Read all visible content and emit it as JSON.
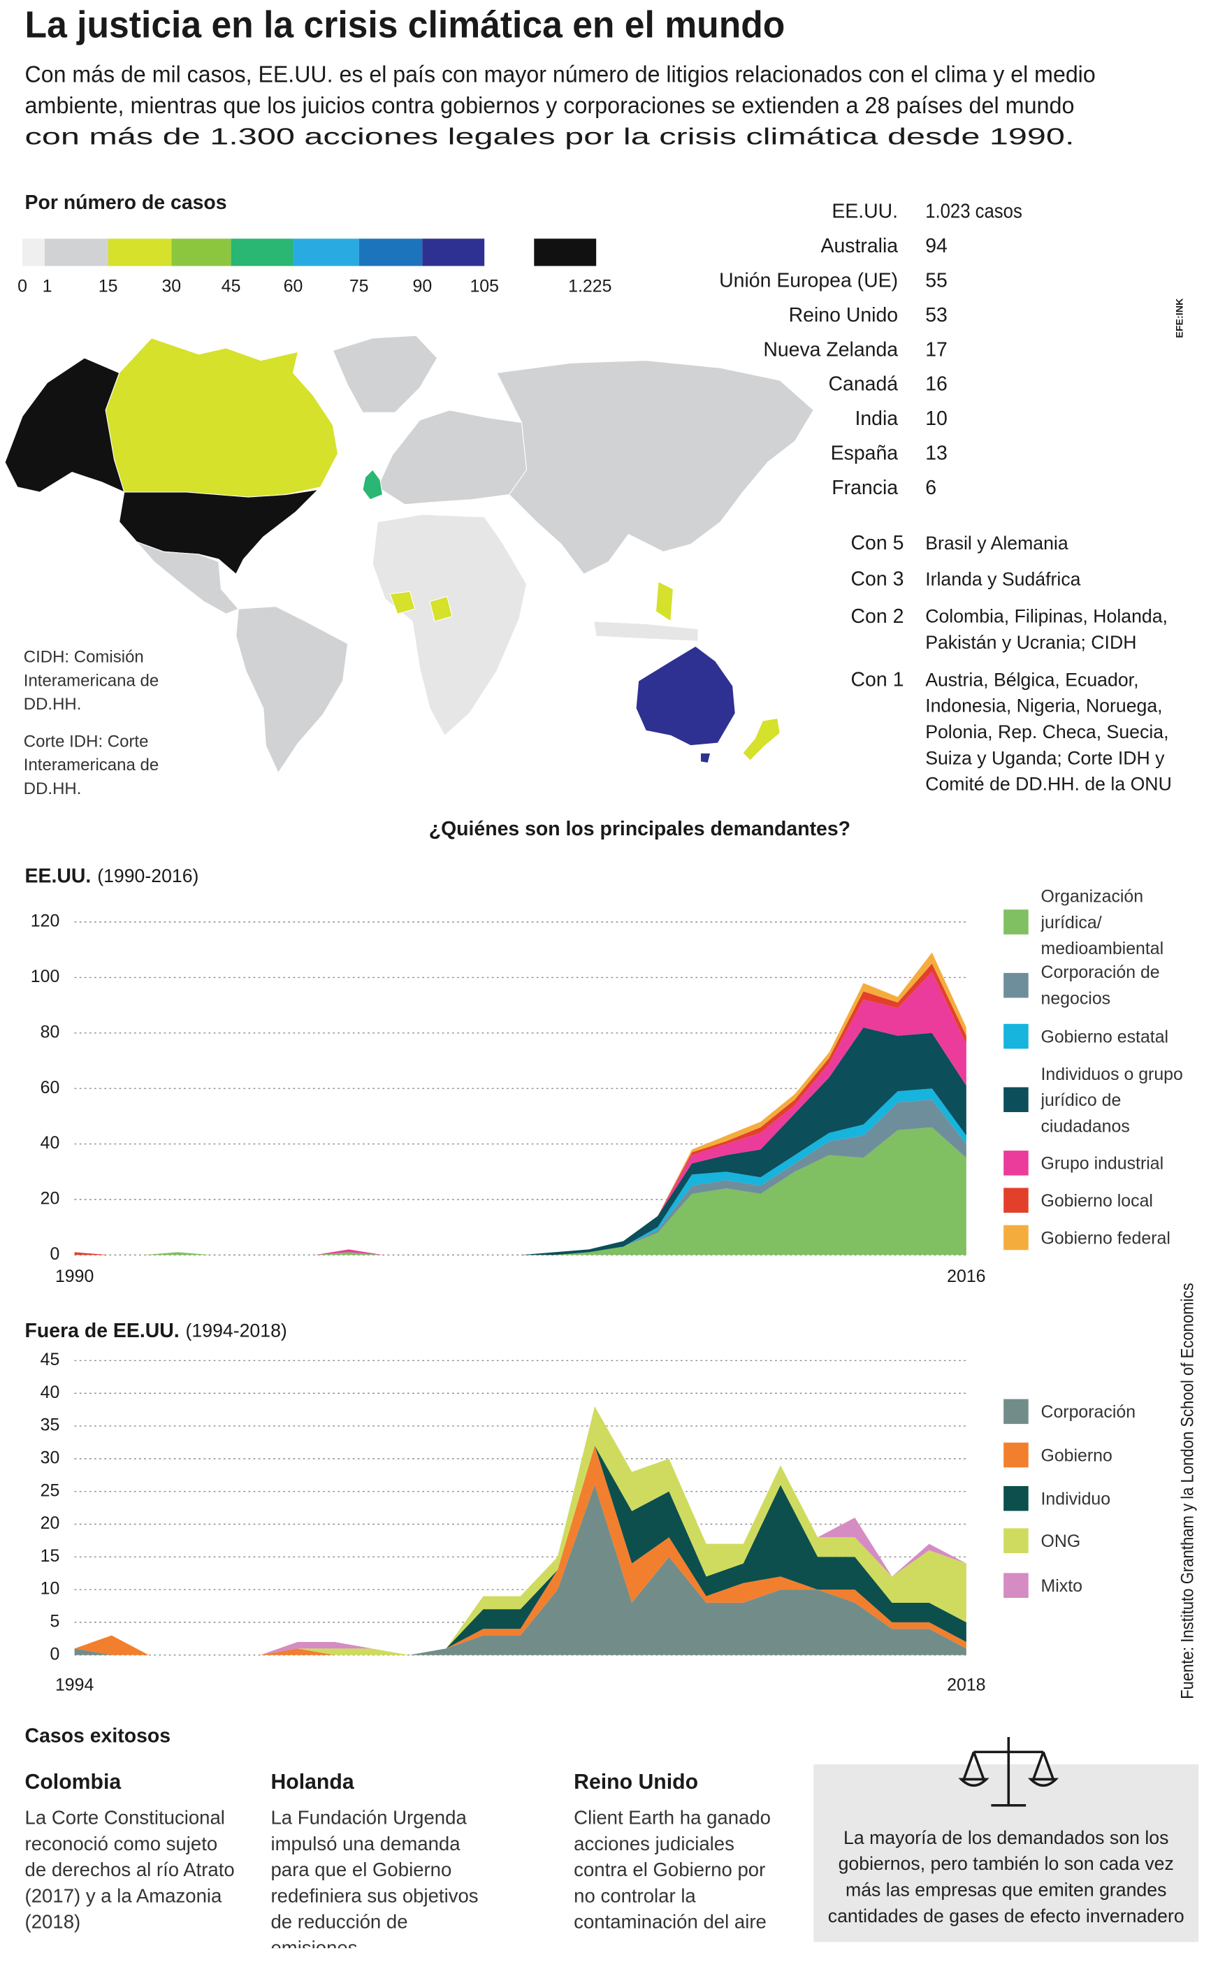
{
  "header": {
    "title": "La justicia en la crisis climática en el mundo",
    "intro": [
      "Con más de mil casos, EE.UU. es el país con mayor número de litigios relacionados con el clima y el medio",
      "ambiente, mientras que los juicios contra gobiernos y corporaciones se extienden a 28 países del mundo",
      "con más de 1.300 acciones legales por la crisis climática desde 1990."
    ]
  },
  "brand": "EFE:INK",
  "color_scale": {
    "title": "Por número de casos",
    "colors": [
      "#efefef",
      "#d1d2d4",
      "#d5e12b",
      "#8cc63f",
      "#2ab673",
      "#29abe2",
      "#1c75bc",
      "#2e3192",
      "#111111"
    ],
    "ticks": [
      0,
      1,
      15,
      30,
      45,
      60,
      75,
      90,
      105,
      {
        "value": 1225,
        "label": "1.225"
      }
    ]
  },
  "ranking": [
    {
      "country": "EE.UU.",
      "value": "1.023 casos"
    },
    {
      "country": "Australia",
      "value": "94"
    },
    {
      "country": "Unión Europea (UE)",
      "value": "55"
    },
    {
      "country": "Reino Unido",
      "value": "53"
    },
    {
      "country": "Nueva Zelanda",
      "value": "17"
    },
    {
      "country": "Canadá",
      "value": "16"
    },
    {
      "country": "India",
      "value": "10"
    },
    {
      "country": "España",
      "value": "13"
    },
    {
      "country": "Francia",
      "value": "6"
    }
  ],
  "groups": [
    {
      "label": "Con 5",
      "text": "Brasil y Alemania"
    },
    {
      "label": "Con 3",
      "text": "Irlanda y Sudáfrica"
    },
    {
      "label": "Con 2",
      "text": "Colombia, Filipinas, Holanda, Pakistán y Ucrania; CIDH"
    },
    {
      "label": "Con 1",
      "text": "Austria, Bélgica, Ecuador, Indonesia, Nigeria, Noruega, Polonia, Rep. Checa, Suecia, Suiza y Uganda; Corte IDH y Comité de DD.HH. de la ONU"
    }
  ],
  "map_notes": [
    "CIDH: Comisión Interamericana de DD.HH.",
    "Corte IDH: Corte Interamericana de DD.HH."
  ],
  "section_title": "¿Quiénes son los principales demandantes?",
  "chart_data": [
    {
      "type": "stacked_area",
      "title": "EE.UU.",
      "subtitle": "(1990-2016)",
      "x": [
        1990,
        1991,
        1992,
        1993,
        1994,
        1995,
        1996,
        1997,
        1998,
        1999,
        2000,
        2001,
        2002,
        2003,
        2004,
        2005,
        2006,
        2007,
        2008,
        2009,
        2010,
        2011,
        2012,
        2013,
        2014,
        2015,
        2016
      ],
      "xlim": [
        1990,
        2016
      ],
      "xticks": [
        1990,
        2016
      ],
      "ylim": [
        0,
        120
      ],
      "yticks": [
        0,
        20,
        40,
        60,
        80,
        100,
        120
      ],
      "grid": true,
      "series": [
        {
          "name": "Organización jurídica/ medioambiental",
          "color": "#80bf62",
          "values": [
            0,
            0,
            0,
            1,
            0,
            0,
            0,
            0,
            1,
            0,
            0,
            0,
            0,
            0,
            0,
            1,
            3,
            8,
            22,
            24,
            22,
            30,
            36,
            35,
            45,
            46,
            35
          ]
        },
        {
          "name": "Corporación de negocios",
          "color": "#6f8e9b",
          "values": [
            0,
            0,
            0,
            0,
            0,
            0,
            0,
            0,
            0,
            0,
            0,
            0,
            0,
            0,
            0,
            0,
            0,
            1,
            3,
            3,
            3,
            3,
            5,
            8,
            10,
            10,
            5
          ]
        },
        {
          "name": "Gobierno estatal",
          "color": "#17b4dd",
          "values": [
            0,
            0,
            0,
            0,
            0,
            0,
            0,
            0,
            0,
            0,
            0,
            0,
            0,
            0,
            0,
            0,
            0,
            1,
            4,
            3,
            3,
            3,
            3,
            4,
            4,
            4,
            3
          ]
        },
        {
          "name": "Individuos o grupo jurídico de ciudadanos",
          "color": "#0c4e5a",
          "values": [
            0,
            0,
            0,
            0,
            0,
            0,
            0,
            0,
            0,
            0,
            0,
            0,
            0,
            0,
            1,
            1,
            2,
            4,
            4,
            6,
            10,
            15,
            20,
            35,
            20,
            20,
            18
          ]
        },
        {
          "name": "Grupo industrial",
          "color": "#eb3c9b",
          "values": [
            0,
            0,
            0,
            0,
            0,
            0,
            0,
            0,
            1,
            0,
            0,
            0,
            0,
            0,
            0,
            0,
            0,
            0,
            3,
            4,
            6,
            3,
            5,
            10,
            10,
            22,
            15
          ]
        },
        {
          "name": "Gobierno local",
          "color": "#e3402c",
          "values": [
            1,
            0,
            0,
            0,
            0,
            0,
            0,
            0,
            0,
            0,
            0,
            0,
            0,
            0,
            0,
            0,
            0,
            0,
            1,
            1,
            2,
            2,
            2,
            3,
            2,
            3,
            3
          ]
        },
        {
          "name": "Gobierno federal",
          "color": "#f4ad3d",
          "values": [
            0,
            0,
            0,
            0,
            0,
            0,
            0,
            0,
            0,
            0,
            0,
            0,
            0,
            0,
            0,
            0,
            0,
            0,
            1,
            2,
            2,
            2,
            2,
            3,
            2,
            4,
            3
          ]
        }
      ]
    },
    {
      "type": "stacked_area",
      "title": "Fuera de EE.UU.",
      "subtitle": "(1994-2018)",
      "x": [
        1994,
        1995,
        1996,
        1997,
        1998,
        1999,
        2000,
        2001,
        2002,
        2003,
        2004,
        2005,
        2006,
        2007,
        2008,
        2009,
        2010,
        2011,
        2012,
        2013,
        2014,
        2015,
        2016,
        2017,
        2018
      ],
      "xlim": [
        1994,
        2018
      ],
      "xticks": [
        1994,
        2018
      ],
      "ylim": [
        0,
        45
      ],
      "yticks": [
        0,
        5,
        10,
        15,
        20,
        25,
        30,
        35,
        40,
        45
      ],
      "grid": true,
      "series": [
        {
          "name": "Corporación",
          "color": "#728d89",
          "values": [
            1,
            0,
            0,
            0,
            0,
            0,
            0,
            0,
            0,
            0,
            1,
            3,
            3,
            10,
            26,
            8,
            15,
            8,
            8,
            10,
            10,
            8,
            4,
            4,
            1
          ]
        },
        {
          "name": "Gobierno",
          "color": "#f27f2e",
          "values": [
            0,
            3,
            0,
            0,
            0,
            0,
            1,
            0,
            0,
            0,
            0,
            1,
            1,
            3,
            6,
            6,
            3,
            1,
            3,
            2,
            0,
            2,
            1,
            1,
            1
          ]
        },
        {
          "name": "Individuo",
          "color": "#0d4f4d",
          "values": [
            0,
            0,
            0,
            0,
            0,
            0,
            0,
            0,
            0,
            0,
            0,
            3,
            3,
            0,
            0,
            8,
            7,
            3,
            3,
            14,
            5,
            5,
            3,
            3,
            3
          ]
        },
        {
          "name": "ONG",
          "color": "#cfdb5e",
          "values": [
            0,
            0,
            0,
            0,
            0,
            0,
            0,
            1,
            1,
            0,
            0,
            2,
            2,
            2,
            6,
            6,
            5,
            5,
            3,
            3,
            3,
            3,
            4,
            8,
            9
          ]
        },
        {
          "name": "Mixto",
          "color": "#d58cc2",
          "values": [
            0,
            0,
            0,
            0,
            0,
            0,
            1,
            1,
            0,
            0,
            0,
            0,
            0,
            0,
            0,
            0,
            0,
            0,
            0,
            0,
            0,
            3,
            0,
            1,
            0
          ]
        }
      ]
    }
  ],
  "source": "Fuente: Instituto Grantham y la London School of Economics",
  "success": {
    "title": "Casos exitosos",
    "cases": [
      {
        "country": "Colombia",
        "text": "La Corte Constitucional reconoció como sujeto de derechos al río Atrato (2017) y a la Amazonia (2018)"
      },
      {
        "country": "Holanda",
        "text": "La Fundación Urgenda impulsó una demanda para que el Gobierno redefiniera sus objetivos de reducción de emisiones"
      },
      {
        "country": "Reino Unido",
        "text": "Client Earth ha ganado acciones judiciales contra el Gobierno por no controlar la contaminación del aire"
      }
    ],
    "note": "La mayoría de los demandados son los gobiernos, pero también lo son cada vez más las empresas que emiten grandes cantidades de gases de efecto invernadero"
  }
}
